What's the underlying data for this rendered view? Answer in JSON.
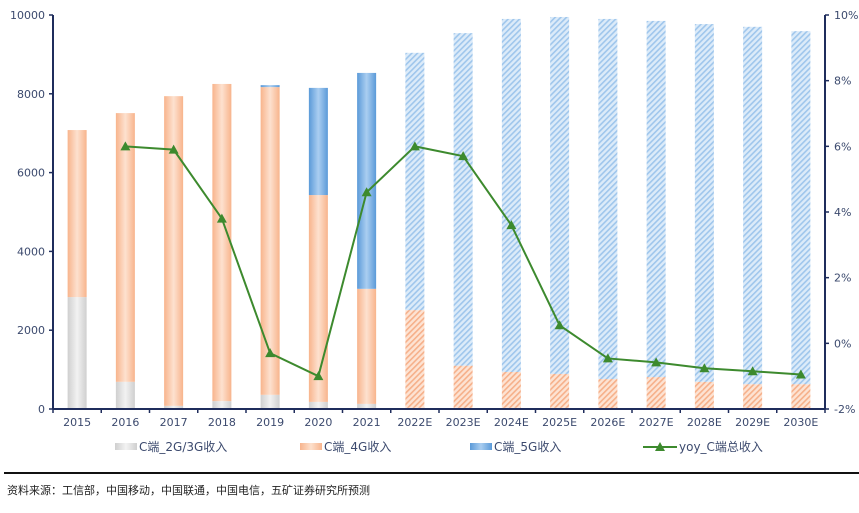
{
  "chart_data": {
    "type": "bar",
    "subtype": "stacked bar + line (dual axis)",
    "categories": [
      "2015",
      "2016",
      "2017",
      "2018",
      "2019",
      "2020",
      "2021",
      "2022E",
      "2023E",
      "2024E",
      "2025E",
      "2026E",
      "2027E",
      "2028E",
      "2029E",
      "2030E"
    ],
    "forecast_from_index": 7,
    "series": [
      {
        "name": "C端_2G/3G收入",
        "type": "bar",
        "axis": "left",
        "color": "#d9d9d9",
        "values": [
          2840,
          690,
          80,
          200,
          360,
          180,
          130,
          30,
          30,
          30,
          30,
          20,
          20,
          20,
          20,
          20
        ]
      },
      {
        "name": "C端_4G收入",
        "type": "bar",
        "axis": "left",
        "color": "#f9c3a3",
        "values": [
          4240,
          6820,
          7860,
          8050,
          7810,
          5250,
          2920,
          2480,
          1070,
          910,
          860,
          740,
          790,
          670,
          610,
          610
        ]
      },
      {
        "name": "C端_5G收入",
        "type": "bar",
        "axis": "left",
        "color": "#6fa8dc",
        "values": [
          0,
          0,
          0,
          0,
          50,
          2720,
          5480,
          6530,
          8440,
          8960,
          9060,
          9140,
          9040,
          9080,
          9070,
          8960
        ]
      },
      {
        "name": "yoy_C端总收入",
        "type": "line",
        "axis": "right",
        "color": "#3d8a2e",
        "marker": "triangle",
        "values": [
          null,
          6.0,
          5.9,
          3.8,
          -0.3,
          -1.0,
          4.6,
          6.0,
          5.7,
          3.6,
          0.55,
          -0.46,
          -0.58,
          -0.76,
          -0.85,
          -0.95
        ]
      }
    ],
    "title": "",
    "xlabel": "",
    "ylabel": "",
    "ylim": [
      0,
      10000
    ],
    "yticks": [
      "0",
      "2000",
      "4000",
      "6000",
      "8000",
      "10000"
    ],
    "y2lim": [
      -2,
      10
    ],
    "y2ticks": [
      "-2%",
      "0%",
      "2%",
      "4%",
      "6%",
      "8%",
      "10%"
    ],
    "grid": false,
    "legend_position": "bottom"
  },
  "legend": {
    "items": [
      "C端_2G/3G收入",
      "C端_4G收入",
      "C端_5G收入",
      "yoy_C端总收入"
    ]
  },
  "source": "资料来源：工信部，中国移动，中国联通，中国电信，五矿证券研究所预测"
}
